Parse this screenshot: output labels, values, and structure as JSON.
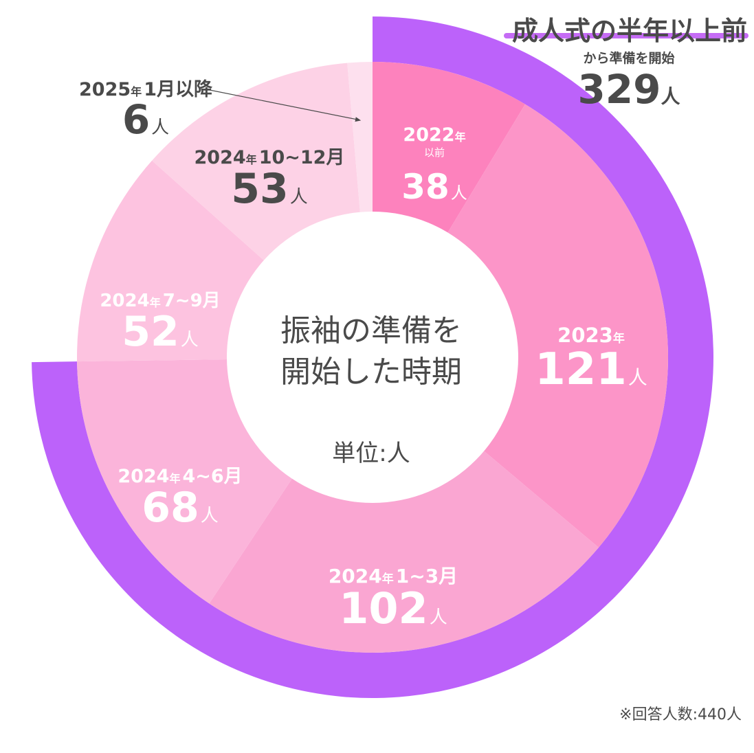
{
  "chart_data": {
    "type": "pie",
    "style": "donut",
    "center": {
      "title_line1": "振袖の準備を",
      "title_line2": "開始した時期",
      "unit_label": "単位:人"
    },
    "categories": [
      "2022年以前",
      "2023年",
      "2024年1~3月",
      "2024年4~6月",
      "2024年7~9月",
      "2024年10~12月",
      "2025年1月以降"
    ],
    "slices": [
      {
        "period": "2022",
        "period_suffix": "年",
        "period_sub": "以前",
        "value": 38,
        "display": "38",
        "unit": "人",
        "color": "#fd82bd",
        "text_color": "#ffffff"
      },
      {
        "period": "2023",
        "period_suffix": "年",
        "period_sub": "",
        "value": 121,
        "display": "121",
        "unit": "人",
        "color": "#fc95c8",
        "text_color": "#ffffff"
      },
      {
        "period": "2024",
        "period_suffix": "年",
        "period_sub": "1~3月",
        "value": 102,
        "display": "102",
        "unit": "人",
        "color": "#faa6d2",
        "text_color": "#ffffff"
      },
      {
        "period": "2024",
        "period_suffix": "年",
        "period_sub": "4~6月",
        "value": 68,
        "display": "68",
        "unit": "人",
        "color": "#fbb4da",
        "text_color": "#ffffff"
      },
      {
        "period": "2024",
        "period_suffix": "年",
        "period_sub": "7~9月",
        "value": 52,
        "display": "52",
        "unit": "人",
        "color": "#fdc3e0",
        "text_color": "#ffffff"
      },
      {
        "period": "2024",
        "period_suffix": "年",
        "period_sub": "10~12月",
        "value": 53,
        "display": "53",
        "unit": "人",
        "color": "#fdd2e6",
        "text_color": "#4a4a4a"
      },
      {
        "period": "2025",
        "period_suffix": "年",
        "period_sub": "1月以降",
        "value": 6,
        "display": "6",
        "unit": "人",
        "color": "#fde0ee",
        "text_color": "#4a4a4a"
      }
    ],
    "highlight": {
      "title": "成人式の半年以上前",
      "subtitle": "から準備を開始",
      "value": 329,
      "display": "329",
      "unit": "人",
      "color": "#bc62fa",
      "covers_categories": [
        "2022年以前",
        "2023年",
        "2024年1~3月",
        "2024年4~6月"
      ]
    },
    "total": 440,
    "footnote": "※回答人数:440人"
  }
}
